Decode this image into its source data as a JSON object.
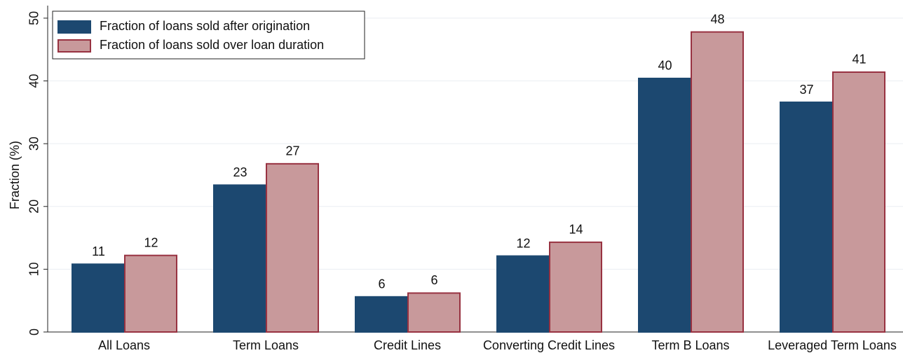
{
  "chart_data": {
    "type": "bar",
    "y_label": "Fraction (%)",
    "categories": [
      "All Loans",
      "Term Loans",
      "Credit Lines",
      "Converting Credit Lines",
      "Term B Loans",
      "Leveraged Term Loans"
    ],
    "series": [
      {
        "name": "Fraction of loans sold after origination",
        "color": "#1c4870",
        "edge": "#1c4870",
        "values": [
          10.8,
          23.4,
          5.6,
          12.1,
          40.4,
          36.6
        ],
        "value_labels": [
          "11",
          "23",
          "6",
          "12",
          "40",
          "37"
        ]
      },
      {
        "name": "Fraction of loans sold over loan duration",
        "color": "#c8999b",
        "edge": "#983241",
        "values": [
          12.2,
          26.8,
          6.2,
          14.3,
          47.8,
          41.4
        ],
        "value_labels": [
          "12",
          "27",
          "6",
          "14",
          "48",
          "41"
        ]
      }
    ],
    "ylim": [
      0,
      52
    ],
    "yticks": [
      0,
      10,
      20,
      30,
      40,
      50
    ],
    "grid": true,
    "legend": "top-left"
  }
}
